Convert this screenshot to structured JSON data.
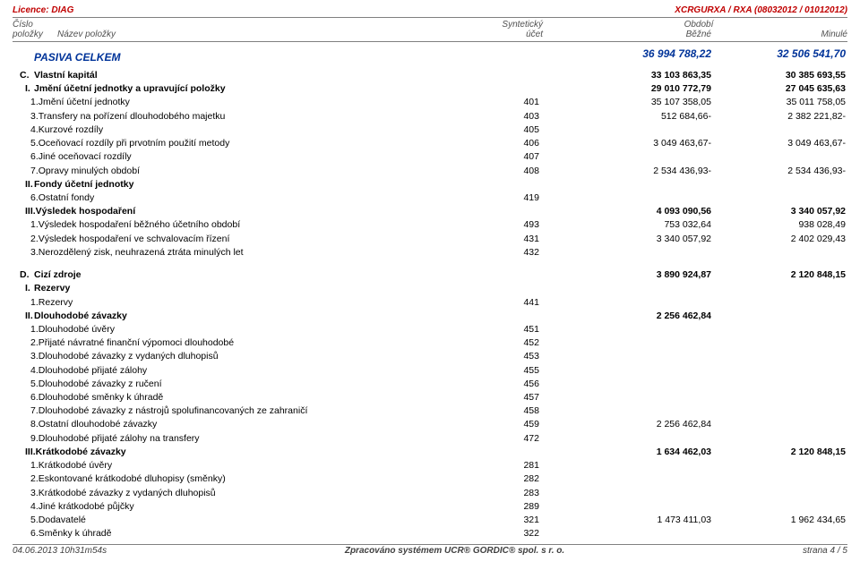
{
  "meta": {
    "licence": "Licence: DIAG",
    "doc_id": "XCRGURXA / RXA (08032012 / 01012012)"
  },
  "header": {
    "r1": {
      "num": "Číslo",
      "synth": "Syntetický",
      "obd": "Období"
    },
    "r2": {
      "num": "položky",
      "name": "Název položky",
      "synth": "účet",
      "bez": "Běžné",
      "min": "Minulé"
    }
  },
  "pasiva_title": "PASIVA CELKEM",
  "pasiva_bez": "36 994 788,22",
  "pasiva_min": "32 506 541,70",
  "rows_a": [
    {
      "p": "C.",
      "t": "Vlastní kapitál",
      "a": "",
      "b": "33 103 863,35",
      "m": "30 385 693,55",
      "bold": true,
      "top": true
    },
    {
      "p": "I.",
      "t": "Jmění účetní jednotky a upravující položky",
      "a": "",
      "b": "29 010 772,79",
      "m": "27 045 635,63",
      "bold": true
    },
    {
      "p": "1.",
      "t": "Jmění účetní jednotky",
      "a": "401",
      "b": "35 107 358,05",
      "m": "35 011 758,05",
      "item": true
    },
    {
      "p": "3.",
      "t": "Transfery na pořízení dlouhodobého majetku",
      "a": "403",
      "b": "512 684,66-",
      "m": "2 382 221,82-",
      "item": true
    },
    {
      "p": "4.",
      "t": "Kurzové rozdíly",
      "a": "405",
      "b": "",
      "m": "",
      "item": true
    },
    {
      "p": "5.",
      "t": "Oceňovací rozdíly při prvotním použití metody",
      "a": "406",
      "b": "3 049 463,67-",
      "m": "3 049 463,67-",
      "item": true
    },
    {
      "p": "6.",
      "t": "Jiné oceňovací rozdíly",
      "a": "407",
      "b": "",
      "m": "",
      "item": true
    },
    {
      "p": "7.",
      "t": "Opravy minulých období",
      "a": "408",
      "b": "2 534 436,93-",
      "m": "2 534 436,93-",
      "item": true
    },
    {
      "p": "II.",
      "t": "Fondy účetní jednotky",
      "a": "",
      "b": "",
      "m": "",
      "bold": true
    },
    {
      "p": "6.",
      "t": "Ostatní fondy",
      "a": "419",
      "b": "",
      "m": "",
      "item": true
    },
    {
      "p": "III.",
      "t": "Výsledek hospodaření",
      "a": "",
      "b": "4 093 090,56",
      "m": "3 340 057,92",
      "bold": true
    },
    {
      "p": "1.",
      "t": "Výsledek hospodaření běžného účetního období",
      "a": "493",
      "b": "753 032,64",
      "m": "938 028,49",
      "item": true
    },
    {
      "p": "2.",
      "t": "Výsledek hospodaření ve schvalovacím řízení",
      "a": "431",
      "b": "3 340 057,92",
      "m": "2 402 029,43",
      "item": true
    },
    {
      "p": "3.",
      "t": "Nerozdělený zisk, neuhrazená ztráta minulých let",
      "a": "432",
      "b": "",
      "m": "",
      "item": true
    }
  ],
  "rows_b": [
    {
      "p": "D.",
      "t": "Cizí zdroje",
      "a": "",
      "b": "3 890 924,87",
      "m": "2 120 848,15",
      "bold": true,
      "top": true
    },
    {
      "p": "I.",
      "t": "Rezervy",
      "a": "",
      "b": "",
      "m": "",
      "bold": true
    },
    {
      "p": "1.",
      "t": "Rezervy",
      "a": "441",
      "b": "",
      "m": "",
      "item": true
    },
    {
      "p": "II.",
      "t": "Dlouhodobé závazky",
      "a": "",
      "b": "2 256 462,84",
      "m": "",
      "bold": true
    },
    {
      "p": "1.",
      "t": "Dlouhodobé úvěry",
      "a": "451",
      "b": "",
      "m": "",
      "item": true
    },
    {
      "p": "2.",
      "t": "Přijaté návratné finanční výpomoci dlouhodobé",
      "a": "452",
      "b": "",
      "m": "",
      "item": true
    },
    {
      "p": "3.",
      "t": "Dlouhodobé závazky z vydaných dluhopisů",
      "a": "453",
      "b": "",
      "m": "",
      "item": true
    },
    {
      "p": "4.",
      "t": "Dlouhodobé přijaté zálohy",
      "a": "455",
      "b": "",
      "m": "",
      "item": true
    },
    {
      "p": "5.",
      "t": "Dlouhodobé závazky z ručení",
      "a": "456",
      "b": "",
      "m": "",
      "item": true
    },
    {
      "p": "6.",
      "t": "Dlouhodobé směnky k úhradě",
      "a": "457",
      "b": "",
      "m": "",
      "item": true
    },
    {
      "p": "7.",
      "t": "Dlouhodobé závazky z nástrojů spolufinancovaných ze zahraničí",
      "a": "458",
      "b": "",
      "m": "",
      "item": true
    },
    {
      "p": "8.",
      "t": "Ostatní dlouhodobé závazky",
      "a": "459",
      "b": "2 256 462,84",
      "m": "",
      "item": true
    },
    {
      "p": "9.",
      "t": "Dlouhodobé přijaté zálohy na transfery",
      "a": "472",
      "b": "",
      "m": "",
      "item": true
    },
    {
      "p": "III.",
      "t": "Krátkodobé závazky",
      "a": "",
      "b": "1 634 462,03",
      "m": "2 120 848,15",
      "bold": true
    },
    {
      "p": "1.",
      "t": "Krátkodobé úvěry",
      "a": "281",
      "b": "",
      "m": "",
      "item": true
    },
    {
      "p": "2.",
      "t": "Eskontované krátkodobé dluhopisy (směnky)",
      "a": "282",
      "b": "",
      "m": "",
      "item": true
    },
    {
      "p": "3.",
      "t": "Krátkodobé závazky z vydaných dluhopisů",
      "a": "283",
      "b": "",
      "m": "",
      "item": true
    },
    {
      "p": "4.",
      "t": "Jiné krátkodobé půjčky",
      "a": "289",
      "b": "",
      "m": "",
      "item": true
    },
    {
      "p": "5.",
      "t": "Dodavatelé",
      "a": "321",
      "b": "1 473 411,03",
      "m": "1 962 434,65",
      "item": true
    },
    {
      "p": "6.",
      "t": "Směnky k úhradě",
      "a": "322",
      "b": "",
      "m": "",
      "item": true
    }
  ],
  "footer": {
    "left": "04.06.2013 10h31m54s",
    "mid": "Zpracováno systémem  UCR® GORDIC® spol. s  r. o.",
    "right": "strana 4 / 5"
  }
}
